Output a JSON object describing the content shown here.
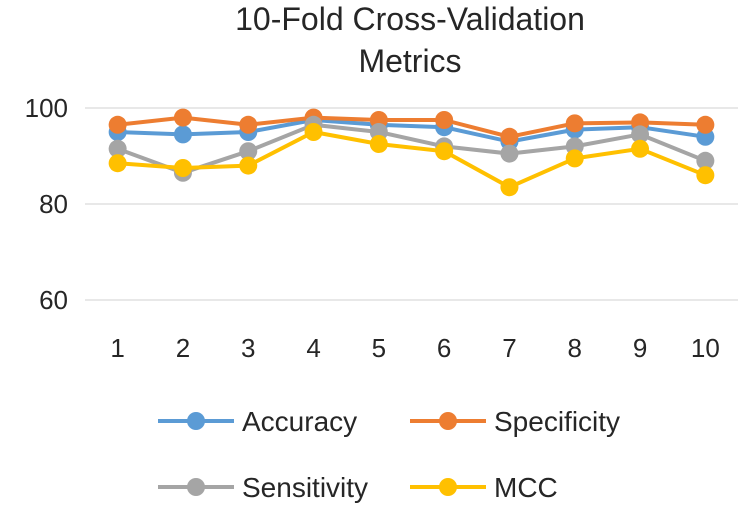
{
  "chart_data": {
    "type": "line",
    "title_lines": [
      "10-Fold Cross-Validation",
      "Metrics"
    ],
    "categories": [
      "1",
      "2",
      "3",
      "4",
      "5",
      "6",
      "7",
      "8",
      "9",
      "10"
    ],
    "ylim": [
      60,
      100
    ],
    "yticks": [
      "60",
      "80",
      "100"
    ],
    "grid": true,
    "legend": "bottom",
    "series": [
      {
        "name": "Accuracy",
        "color": "#5b9bd5",
        "values": [
          95.0,
          94.5,
          95.0,
          97.5,
          96.5,
          96.0,
          93.0,
          95.5,
          96.0,
          94.0
        ]
      },
      {
        "name": "Specificity",
        "color": "#ed7d31",
        "values": [
          96.5,
          98.0,
          96.5,
          98.0,
          97.5,
          97.5,
          94.0,
          96.8,
          97.0,
          96.5
        ]
      },
      {
        "name": "Sensitivity",
        "color": "#a5a5a5",
        "values": [
          91.5,
          86.5,
          91.0,
          96.5,
          95.0,
          92.0,
          90.5,
          92.0,
          94.5,
          89.0
        ]
      },
      {
        "name": "MCC",
        "color": "#ffc000",
        "values": [
          88.5,
          87.5,
          88.0,
          95.0,
          92.5,
          91.0,
          83.5,
          89.5,
          91.5,
          86.0
        ]
      }
    ]
  }
}
